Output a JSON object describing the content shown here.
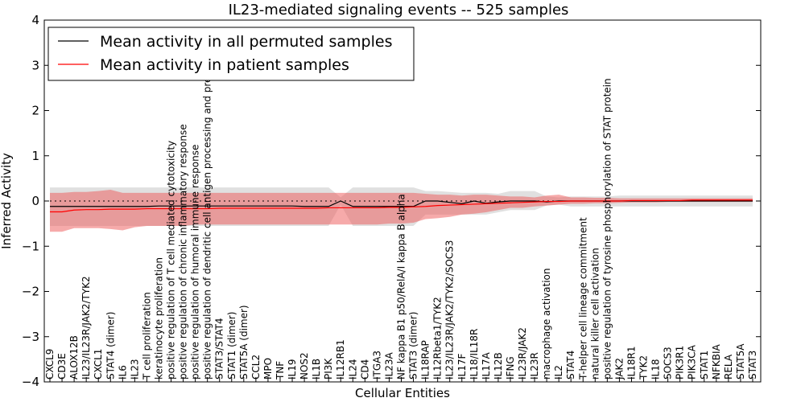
{
  "chart_data": {
    "type": "line",
    "title": "IL23-mediated signaling events -- 525 samples",
    "xlabel": "Cellular Entities",
    "ylabel": "Inferred Activity",
    "ylim": [
      -4,
      4
    ],
    "yticks": [
      "4",
      "3",
      "2",
      "1",
      "0",
      "−1",
      "−2",
      "−3",
      "−4"
    ],
    "legend_position": "upper-left",
    "categories": [
      "CXCL9",
      "CD3E",
      "ALOX12B",
      "IL23/IL23R/JAK2/TYK2",
      "CXCL1",
      "STAT4 (dimer)",
      "IL6",
      "IL23",
      "T cell proliferation",
      "keratinocyte proliferation",
      "positive regulation of T cell mediated cytotoxicity",
      "positive regulation of chronic inflammatory response",
      "positive regulation of humoral immune response",
      "positive regulation of dendritic cell antigen processing and presentation",
      "STAT3/STAT4",
      "STAT1 (dimer)",
      "STAT5A (dimer)",
      "CCL2",
      "MPO",
      "TNF",
      "IL19",
      "NOS2",
      "IL1B",
      "PI3K",
      "IL12RB1",
      "IL24",
      "CD4",
      "ITGA3",
      "IL23A",
      "NF kappa B1 p50/RelA/I kappa B alpha",
      "STAT3 (dimer)",
      "IL18RAP",
      "IL12Rbeta1/TYK2",
      "IL23/IL23R/JAK2/TYK2/SOCS3",
      "IL17F",
      "IL18/IL18R",
      "IL17A",
      "IL12B",
      "IFNG",
      "IL23R/JAK2",
      "IL23R",
      "macrophage activation",
      "IL2",
      "STAT4",
      "T-helper cell lineage commitment",
      "natural killer cell activation",
      "positive regulation of tyrosine phosphorylation of STAT protein",
      "JAK2",
      "IL18R1",
      "TYK2",
      "IL18",
      "SOCS3",
      "PIK3R1",
      "PIK3CA",
      "STAT1",
      "NFKBIA",
      "RELA",
      "STAT5A",
      "STAT3"
    ],
    "series": [
      {
        "name": "Mean activity in all permuted samples",
        "color": "#000000",
        "band_color": "#bbbbbb",
        "values": [
          -0.12,
          -0.12,
          -0.12,
          -0.12,
          -0.12,
          -0.12,
          -0.12,
          -0.12,
          -0.12,
          -0.11,
          -0.11,
          -0.11,
          -0.11,
          -0.11,
          -0.11,
          -0.11,
          -0.11,
          -0.11,
          -0.11,
          -0.11,
          -0.11,
          -0.12,
          -0.12,
          -0.12,
          0.0,
          -0.12,
          -0.12,
          -0.12,
          -0.12,
          -0.12,
          -0.12,
          0.0,
          0.0,
          -0.03,
          -0.06,
          0.0,
          -0.05,
          -0.02,
          0.0,
          0.0,
          0.0,
          -0.02,
          0.0,
          0.0,
          0.0,
          0.0,
          0.0,
          0.0,
          0.0,
          0.0,
          0.0,
          0.0,
          0.0,
          0.0,
          0.0,
          0.0,
          0.0,
          0.0,
          0.0
        ],
        "lower": [
          -0.55,
          -0.55,
          -0.55,
          -0.55,
          -0.55,
          -0.55,
          -0.55,
          -0.55,
          -0.55,
          -0.55,
          -0.55,
          -0.55,
          -0.55,
          -0.55,
          -0.55,
          -0.55,
          -0.55,
          -0.55,
          -0.55,
          -0.55,
          -0.55,
          -0.55,
          -0.55,
          -0.55,
          -0.08,
          -0.55,
          -0.55,
          -0.55,
          -0.55,
          -0.55,
          -0.55,
          -0.3,
          -0.3,
          -0.3,
          -0.3,
          -0.3,
          -0.3,
          -0.25,
          -0.2,
          -0.2,
          -0.2,
          -0.1,
          -0.08,
          -0.12,
          -0.12,
          -0.12,
          -0.12,
          -0.12,
          -0.12,
          -0.12,
          -0.12,
          -0.12,
          -0.12,
          -0.12,
          -0.12,
          -0.12,
          -0.12,
          -0.12,
          -0.12
        ],
        "upper": [
          0.3,
          0.3,
          0.3,
          0.3,
          0.3,
          0.3,
          0.3,
          0.3,
          0.3,
          0.3,
          0.3,
          0.3,
          0.3,
          0.3,
          0.3,
          0.3,
          0.3,
          0.3,
          0.3,
          0.3,
          0.3,
          0.3,
          0.3,
          0.3,
          0.08,
          0.3,
          0.3,
          0.3,
          0.3,
          0.3,
          0.3,
          0.22,
          0.22,
          0.2,
          0.18,
          0.18,
          0.18,
          0.16,
          0.22,
          0.22,
          0.22,
          0.1,
          0.08,
          0.1,
          0.1,
          0.1,
          0.1,
          0.12,
          0.12,
          0.12,
          0.12,
          0.12,
          0.12,
          0.12,
          0.12,
          0.12,
          0.12,
          0.12,
          0.12
        ]
      },
      {
        "name": "Mean activity in patient samples",
        "color": "#ff0000",
        "band_color": "#ee5555",
        "values": [
          -0.24,
          -0.24,
          -0.2,
          -0.19,
          -0.19,
          -0.18,
          -0.18,
          -0.18,
          -0.17,
          -0.17,
          -0.17,
          -0.17,
          -0.17,
          -0.17,
          -0.16,
          -0.16,
          -0.16,
          -0.16,
          -0.16,
          -0.16,
          -0.16,
          -0.16,
          -0.16,
          -0.15,
          -0.15,
          -0.15,
          -0.15,
          -0.15,
          -0.14,
          -0.14,
          -0.13,
          -0.12,
          -0.1,
          -0.09,
          -0.08,
          -0.07,
          -0.06,
          -0.05,
          -0.04,
          -0.03,
          -0.02,
          -0.01,
          -0.01,
          0.0,
          0.0,
          0.0,
          0.0,
          0.0,
          0.01,
          0.01,
          0.01,
          0.01,
          0.01,
          0.02,
          0.02,
          0.02,
          0.02,
          0.02,
          0.02
        ],
        "lower": [
          -0.68,
          -0.68,
          -0.6,
          -0.6,
          -0.6,
          -0.62,
          -0.65,
          -0.58,
          -0.55,
          -0.55,
          -0.55,
          -0.55,
          -0.52,
          -0.52,
          -0.52,
          -0.52,
          -0.52,
          -0.52,
          -0.52,
          -0.52,
          -0.52,
          -0.52,
          -0.52,
          -0.52,
          -0.52,
          -0.52,
          -0.52,
          -0.52,
          -0.5,
          -0.5,
          -0.48,
          -0.4,
          -0.38,
          -0.35,
          -0.3,
          -0.28,
          -0.25,
          -0.2,
          -0.15,
          -0.15,
          -0.12,
          -0.1,
          -0.08,
          -0.06,
          -0.06,
          -0.05,
          -0.05,
          -0.04,
          -0.03,
          -0.03,
          -0.03,
          -0.02,
          -0.02,
          -0.02,
          -0.02,
          -0.02,
          -0.02,
          -0.02,
          -0.02
        ],
        "upper": [
          0.18,
          0.18,
          0.2,
          0.2,
          0.22,
          0.25,
          0.18,
          0.18,
          0.18,
          0.18,
          0.18,
          0.18,
          0.18,
          0.18,
          0.18,
          0.18,
          0.18,
          0.18,
          0.18,
          0.18,
          0.18,
          0.18,
          0.18,
          0.18,
          0.18,
          0.18,
          0.18,
          0.18,
          0.18,
          0.18,
          0.18,
          0.16,
          0.14,
          0.14,
          0.12,
          0.14,
          0.14,
          0.12,
          0.1,
          0.1,
          0.08,
          0.12,
          0.14,
          0.08,
          0.08,
          0.07,
          0.07,
          0.06,
          0.06,
          0.06,
          0.06,
          0.06,
          0.06,
          0.06,
          0.06,
          0.06,
          0.06,
          0.06,
          0.06
        ]
      }
    ]
  }
}
